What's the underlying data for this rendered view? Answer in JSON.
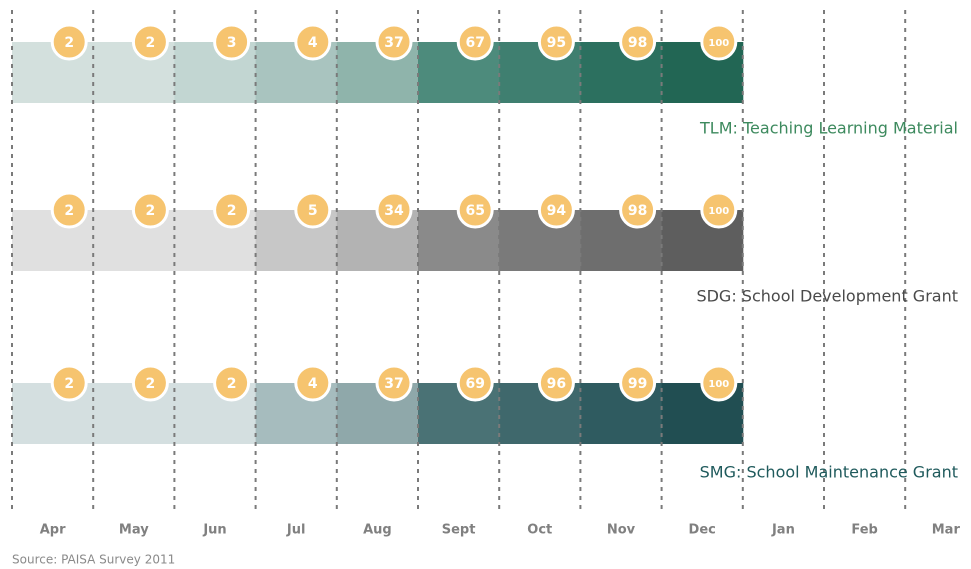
{
  "chart_data": {
    "type": "timeline",
    "categories": [
      "Apr",
      "May",
      "Jun",
      "Jul",
      "Aug",
      "Sept",
      "Oct",
      "Nov",
      "Dec",
      "Jan",
      "Feb",
      "Mar"
    ],
    "series": [
      {
        "name": "TLM: Teaching Learning Material",
        "color": "#3d8a5e",
        "values": [
          2,
          2,
          3,
          4,
          37,
          67,
          95,
          98,
          100,
          null,
          null,
          null
        ],
        "colors": [
          "#d3e0dd",
          "#d3e0dd",
          "#c2d6d2",
          "#a9c4bf",
          "#8fb4ab",
          "#4d8b7c",
          "#3f7f70",
          "#2c705f",
          "#226654"
        ]
      },
      {
        "name": "SDG: School Development Grant",
        "color": "#4a4a4a",
        "values": [
          2,
          2,
          2,
          5,
          34,
          65,
          94,
          98,
          100,
          null,
          null,
          null
        ],
        "colors": [
          "#e0e0e0",
          "#e0e0e0",
          "#e0e0e0",
          "#c7c7c7",
          "#b3b3b3",
          "#8a8a8a",
          "#7a7a7a",
          "#6e6e6e",
          "#5e5e5e"
        ]
      },
      {
        "name": "SMG: School  Maintenance Grant",
        "color": "#1f5a5c",
        "values": [
          2,
          2,
          2,
          4,
          37,
          69,
          96,
          99,
          100,
          null,
          null,
          null
        ],
        "colors": [
          "#d4dfe0",
          "#d4dfe0",
          "#d4dfe0",
          "#a6bcbe",
          "#8fa8aa",
          "#4a7275",
          "#3f686c",
          "#2f5b60",
          "#214e52"
        ]
      }
    ],
    "marker_color": "#f6c46f",
    "source": "Source: PAISA Survey 2011"
  }
}
